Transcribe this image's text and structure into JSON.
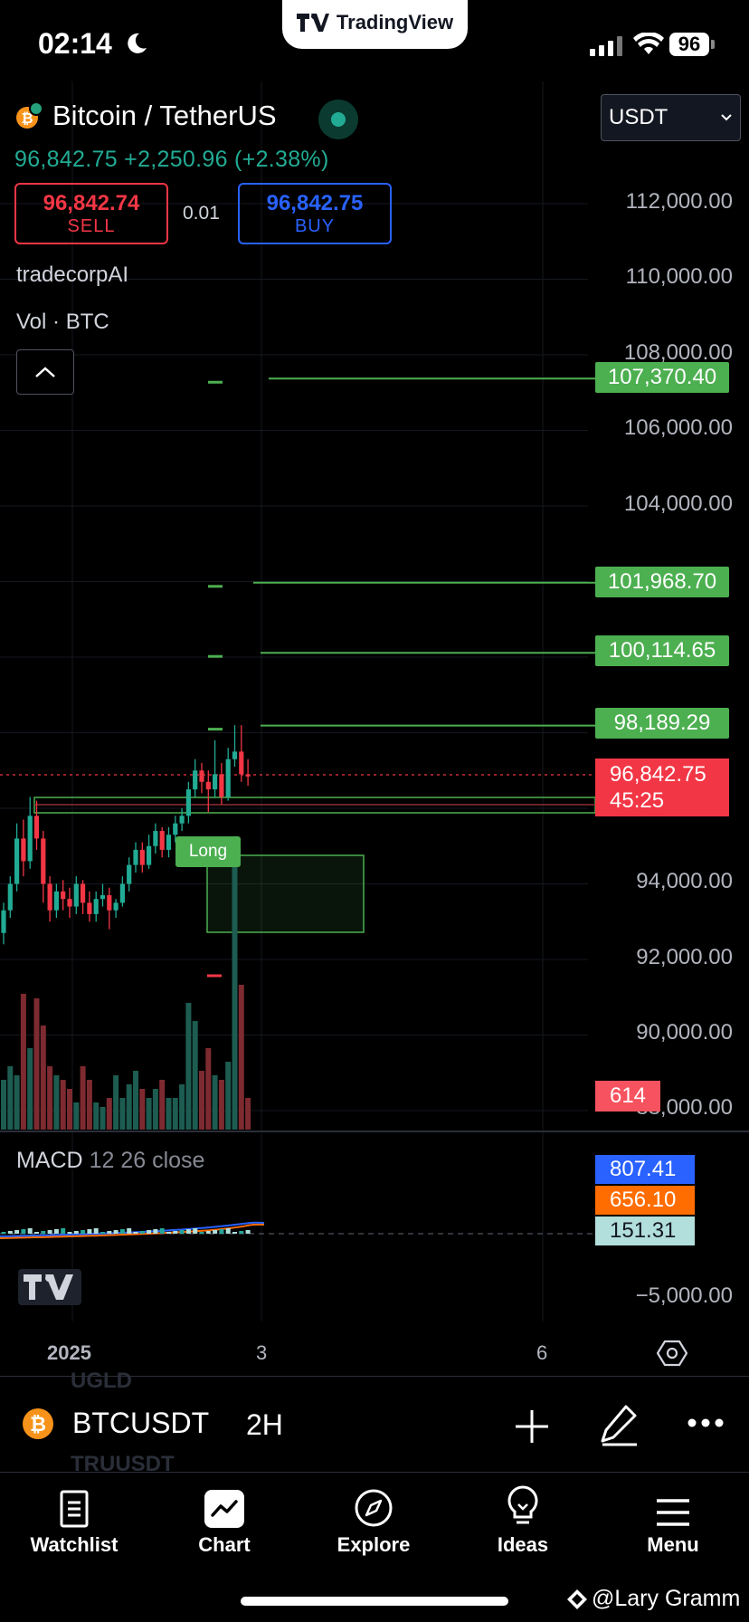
{
  "status_bar": {
    "time": "02:14",
    "app_banner": "TradingView",
    "battery": "96"
  },
  "header": {
    "symbol_title": "Bitcoin / TetherUS",
    "last_price": "96,842.75",
    "change": "+2,250.96",
    "change_pct": "(+2.38%)",
    "currency": "USDT"
  },
  "trade": {
    "sell_price": "96,842.74",
    "sell_label": "SELL",
    "spread": "0.01",
    "buy_price": "96,842.75",
    "buy_label": "BUY"
  },
  "legend": {
    "indicator": "tradecorpAI",
    "volume": "Vol · BTC"
  },
  "price_axis": {
    "ticks": [
      "112,000.00",
      "110,000.00",
      "108,000.00",
      "106,000.00",
      "104,000.00",
      "94,000.00",
      "92,000.00",
      "90,000.00",
      "88,000.00"
    ],
    "levels": [
      "107,370.40",
      "101,968.70",
      "100,114.65",
      "98,189.29"
    ],
    "current_price": "96,842.75",
    "countdown": "45:25",
    "volume_value": "614"
  },
  "signal_label": "Long",
  "macd": {
    "name": "MACD",
    "params": "12 26 close",
    "macd_value": "807.41",
    "signal_value": "656.10",
    "hist_value": "151.31",
    "axis_tick": "−5,000.00",
    "colors": {
      "macd": "#2962ff",
      "signal": "#ff6d00"
    }
  },
  "time_axis": {
    "labels": [
      "2025",
      "3",
      "6"
    ]
  },
  "toolbar": {
    "ticker": "BTCUSDT",
    "interval": "2H",
    "ghost_above": "UGLD",
    "ghost_below": "TRUUSDT"
  },
  "tabs": [
    {
      "label": "Watchlist",
      "icon": "watchlist-icon"
    },
    {
      "label": "Chart",
      "icon": "chart-icon"
    },
    {
      "label": "Explore",
      "icon": "compass-icon"
    },
    {
      "label": "Ideas",
      "icon": "lightbulb-icon"
    },
    {
      "label": "Menu",
      "icon": "hamburger-icon"
    }
  ],
  "credit": "@Lary Gramm",
  "colors": {
    "up": "#22ab94",
    "down": "#f23645",
    "level": "#4caf50",
    "buy": "#2962ff"
  }
}
